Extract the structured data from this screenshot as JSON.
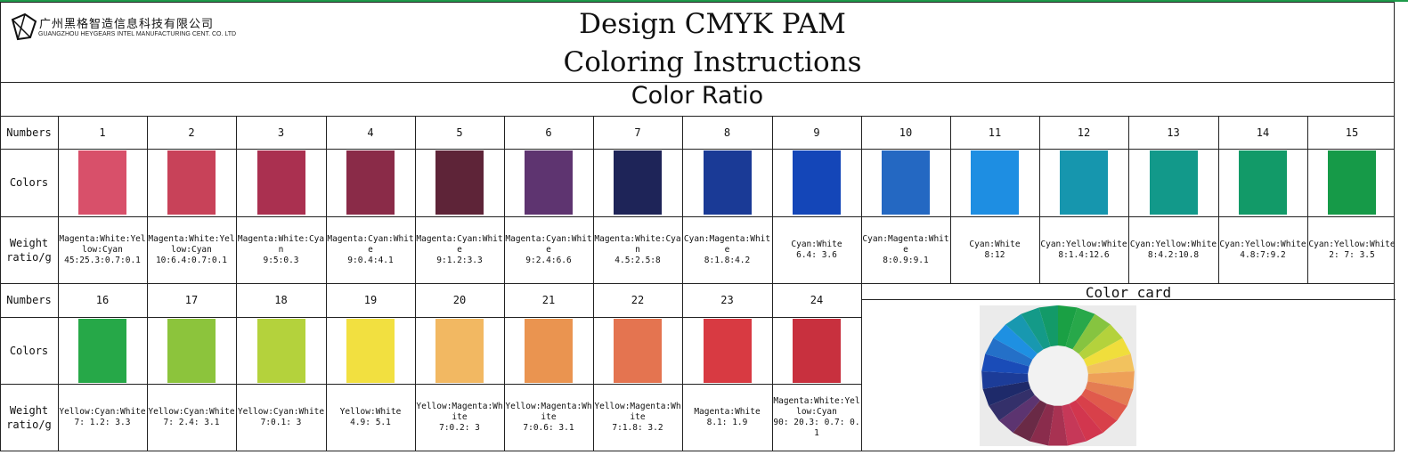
{
  "header": {
    "logo_cn": "广州黑格智造信息科技有限公司",
    "logo_en": "GUANGZHOU HEYGEARS INTEL MANUFACTURING CENT. CO. LTD",
    "title_line1": "Design CMYK PAM",
    "title_line2": "Coloring Instructions"
  },
  "section_title": "Color Ratio",
  "row_labels": {
    "numbers": "Numbers",
    "colors": "Colors",
    "weight": "Weight ratio/g"
  },
  "color_card_title": "Color card",
  "row1": [
    {
      "number": "1",
      "color": "#d8506a",
      "ratio_name": "Magenta:White:Yellow:Cyan",
      "ratio": "45:25.3:0.7:0.1"
    },
    {
      "number": "2",
      "color": "#c84259",
      "ratio_name": "Magenta:White:Yellow:Cyan",
      "ratio": "10:6.4:0.7:0.1"
    },
    {
      "number": "3",
      "color": "#aa3050",
      "ratio_name": "Magenta:White:Cyan",
      "ratio": "9:5:0.3"
    },
    {
      "number": "4",
      "color": "#8a2b48",
      "ratio_name": "Magenta:Cyan:White",
      "ratio": "9:0.4:4.1"
    },
    {
      "number": "5",
      "color": "#5e2438",
      "ratio_name": "Magenta:Cyan:White",
      "ratio": "9:1.2:3.3"
    },
    {
      "number": "6",
      "color": "#5e3470",
      "ratio_name": "Magenta:Cyan:White",
      "ratio": "9:2.4:6.6"
    },
    {
      "number": "7",
      "color": "#1e2458",
      "ratio_name": "Magenta:White:Cyan",
      "ratio": "4.5:2.5:8"
    },
    {
      "number": "8",
      "color": "#1a3a96",
      "ratio_name": "Cyan:Magenta:White",
      "ratio": "8:1.8:4.2"
    },
    {
      "number": "9",
      "color": "#1446b8",
      "ratio_name": "Cyan:White",
      "ratio": "6.4: 3.6"
    },
    {
      "number": "10",
      "color": "#2468c2",
      "ratio_name": "Cyan:Magenta:White",
      "ratio": "8:0.9:9.1"
    },
    {
      "number": "11",
      "color": "#1e8ee2",
      "ratio_name": "Cyan:White",
      "ratio": "8:12"
    },
    {
      "number": "12",
      "color": "#1696ae",
      "ratio_name": "Cyan:Yellow:White",
      "ratio": "8:1.4:12.6"
    },
    {
      "number": "13",
      "color": "#12998a",
      "ratio_name": "Cyan:Yellow:White",
      "ratio": "8:4.2:10.8"
    },
    {
      "number": "14",
      "color": "#129a68",
      "ratio_name": "Cyan:Yellow:White",
      "ratio": "4.8:7:9.2"
    },
    {
      "number": "15",
      "color": "#169a48",
      "ratio_name": "Cyan:Yellow:White",
      "ratio": "2: 7: 3.5"
    }
  ],
  "row2": [
    {
      "number": "16",
      "color": "#26a848",
      "ratio_name": "Yellow:Cyan:White",
      "ratio": "7: 1.2: 3.3"
    },
    {
      "number": "17",
      "color": "#8cc43c",
      "ratio_name": "Yellow:Cyan:White",
      "ratio": "7: 2.4: 3.1"
    },
    {
      "number": "18",
      "color": "#b4d23c",
      "ratio_name": "Yellow:Cyan:White",
      "ratio": "7:0.1: 3"
    },
    {
      "number": "19",
      "color": "#f2e040",
      "ratio_name": "Yellow:White",
      "ratio": "4.9: 5.1"
    },
    {
      "number": "20",
      "color": "#f2b862",
      "ratio_name": "Yellow:Magenta:White",
      "ratio": "7:0.2: 3"
    },
    {
      "number": "21",
      "color": "#ea9450",
      "ratio_name": "Yellow:Magenta:White",
      "ratio": "7:0.6: 3.1"
    },
    {
      "number": "22",
      "color": "#e47450",
      "ratio_name": "Yellow:Magenta:White",
      "ratio": "7:1.8: 3.2"
    },
    {
      "number": "23",
      "color": "#d83a42",
      "ratio_name": "Magenta:White",
      "ratio": "8.1: 1.9"
    },
    {
      "number": "24",
      "color": "#c8303e",
      "ratio_name": "Magenta:White:Yellow:Cyan",
      "ratio": "90: 20.3: 0.7: 0.1"
    }
  ],
  "wheel_colors": [
    "#1aa044",
    "#28a84a",
    "#86c440",
    "#b4d23c",
    "#f0de3c",
    "#f2c25e",
    "#eea058",
    "#e47c52",
    "#e05a4c",
    "#d8404a",
    "#d2364e",
    "#c63858",
    "#a83252",
    "#8a2c4c",
    "#6a2a46",
    "#5c3470",
    "#34306a",
    "#1e2a6a",
    "#1c3c98",
    "#1a4cb8",
    "#2470c8",
    "#1e90e2",
    "#1898b0",
    "#149a88",
    "#139a68"
  ]
}
